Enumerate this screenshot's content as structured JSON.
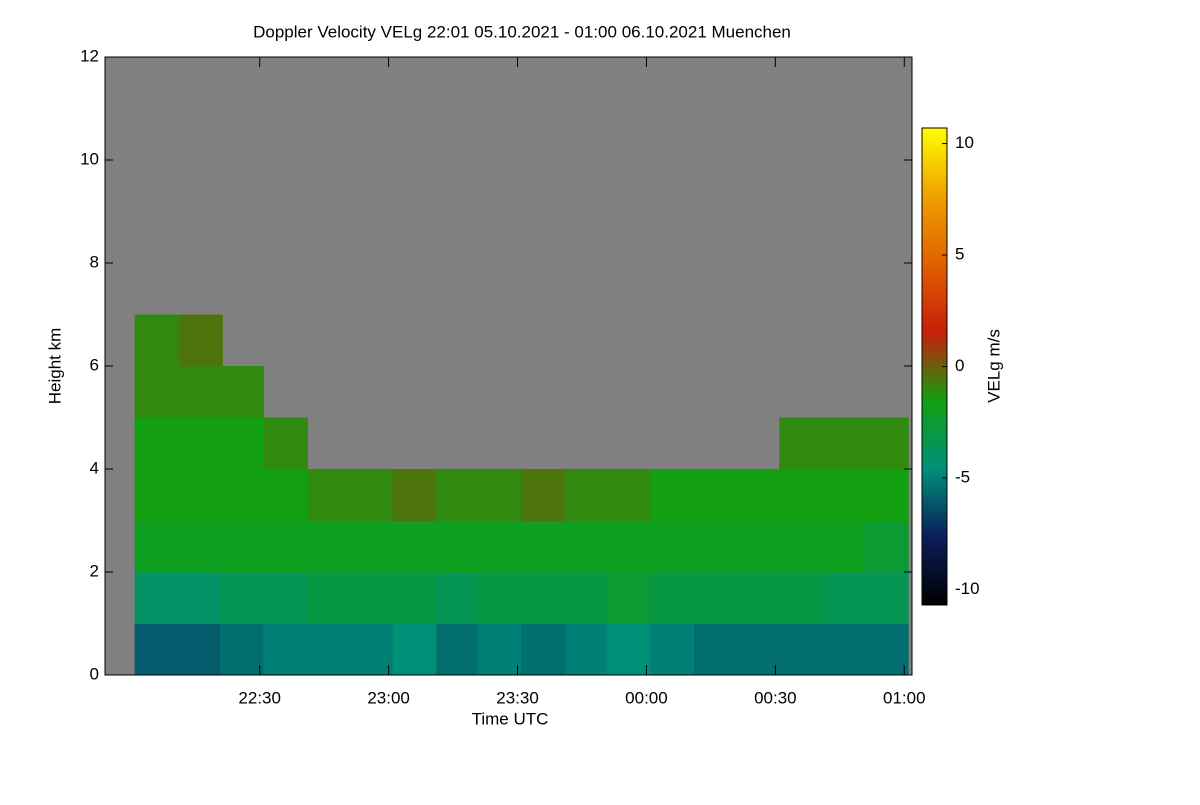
{
  "chart_data": {
    "type": "heatmap",
    "title": "Doppler Velocity VELg   22:01 05.10.2021 - 01:00 06.10.2021 Muenchen",
    "x_label": "Time UTC",
    "y_label": "Height km",
    "colorbar_label": "VELg m/s",
    "x": [
      22.1,
      22.27,
      22.43,
      22.6,
      22.77,
      22.93,
      23.1,
      23.27,
      23.43,
      23.6,
      23.77,
      23.93,
      24.1,
      24.27,
      24.43,
      24.6,
      24.77,
      24.93
    ],
    "y": [
      0.5,
      1.5,
      2.5,
      3.5,
      4.5,
      5.5,
      6.5,
      7.5,
      8.5,
      9.5,
      10.5,
      11.5
    ],
    "z": [
      [
        -6,
        -6,
        -5.5,
        -5,
        -5,
        -5,
        -4.5,
        -5.5,
        -5,
        -5.5,
        -5,
        -4.5,
        -5,
        -5.5,
        -5.5,
        -5.5,
        -5.5,
        -5.5
      ],
      [
        -4,
        -4,
        -3.5,
        -3.5,
        -3,
        -3,
        -3,
        -3.5,
        -3,
        -3,
        -3,
        -2.5,
        -3,
        -3,
        -3,
        -3,
        -3.5,
        -3.5
      ],
      [
        -2,
        -2,
        -2,
        -2,
        -2,
        -2,
        -2,
        -2,
        -2,
        -2,
        -2,
        -2,
        -2,
        -2,
        -2,
        -2,
        -2,
        -2.5
      ],
      [
        -1.5,
        -1.5,
        -1.5,
        -1.5,
        -1,
        -1,
        -0.5,
        -1,
        -1,
        -0.5,
        -1,
        -1,
        -1.5,
        -1.5,
        -1.5,
        -1.5,
        -1.5,
        -1.5
      ],
      [
        -1.5,
        -1.5,
        -1.5,
        -1,
        null,
        null,
        null,
        null,
        null,
        null,
        null,
        null,
        null,
        null,
        null,
        -1,
        -1,
        -1
      ],
      [
        -1,
        -1,
        -1,
        null,
        null,
        null,
        null,
        null,
        null,
        null,
        null,
        null,
        null,
        null,
        null,
        null,
        null,
        null
      ],
      [
        -1,
        -0.5,
        null,
        null,
        null,
        null,
        null,
        null,
        null,
        null,
        null,
        null,
        null,
        null,
        null,
        null,
        null,
        null
      ],
      [
        null,
        null,
        null,
        null,
        null,
        null,
        null,
        null,
        null,
        null,
        null,
        null,
        null,
        null,
        null,
        null,
        null,
        null
      ],
      [
        null,
        null,
        null,
        null,
        null,
        null,
        null,
        null,
        null,
        null,
        null,
        null,
        null,
        null,
        null,
        null,
        null,
        null
      ],
      [
        null,
        null,
        null,
        null,
        null,
        null,
        null,
        null,
        null,
        null,
        null,
        null,
        null,
        null,
        null,
        null,
        null,
        null
      ],
      [
        null,
        null,
        null,
        null,
        null,
        null,
        null,
        null,
        null,
        null,
        null,
        null,
        null,
        null,
        null,
        null,
        null,
        null
      ],
      [
        null,
        null,
        null,
        null,
        null,
        null,
        null,
        null,
        null,
        null,
        null,
        null,
        null,
        null,
        null,
        null,
        null,
        null
      ]
    ],
    "xlim": [
      21.9,
      25.03
    ],
    "xticks": [
      {
        "value": 22.5,
        "label": "22:30"
      },
      {
        "value": 23,
        "label": "23:00"
      },
      {
        "value": 23.5,
        "label": "23:30"
      },
      {
        "value": 24,
        "label": "00:00"
      },
      {
        "value": 24.5,
        "label": "00:30"
      },
      {
        "value": 25,
        "label": "01:00"
      }
    ],
    "ylim": [
      0,
      12
    ],
    "yticks": [
      0,
      2,
      4,
      6,
      8,
      10,
      12
    ],
    "zlim": [
      -10.7,
      10.7
    ],
    "zticks": [
      -10,
      -5,
      0,
      5,
      10
    ],
    "colorscale": [
      "#000000",
      "#0a1e5a",
      "#00907a",
      "#10a010",
      "#c81e0a",
      "#e06000",
      "#f0a000",
      "#ffff00"
    ],
    "missing_color": "#808080"
  }
}
